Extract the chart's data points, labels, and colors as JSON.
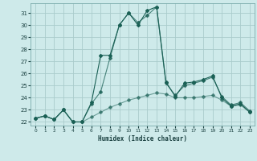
{
  "xlabel": "Humidex (Indice chaleur)",
  "background_color": "#ceeaea",
  "grid_color": "#aacccc",
  "line_color": "#1a6055",
  "xlim": [
    -0.5,
    23.5
  ],
  "ylim": [
    21.7,
    31.8
  ],
  "yticks": [
    22,
    23,
    24,
    25,
    26,
    27,
    28,
    29,
    30,
    31
  ],
  "xticks": [
    0,
    1,
    2,
    3,
    4,
    5,
    6,
    7,
    8,
    9,
    10,
    11,
    12,
    13,
    14,
    15,
    16,
    17,
    18,
    19,
    20,
    21,
    22,
    23
  ],
  "line1_x": [
    0,
    1,
    2,
    3,
    4,
    5,
    6,
    7,
    8,
    9,
    10,
    11,
    12,
    13,
    14,
    15,
    16,
    17,
    18,
    19,
    20,
    21,
    22,
    23
  ],
  "line1_y": [
    22.3,
    22.5,
    22.2,
    23.0,
    22.0,
    22.0,
    23.6,
    27.5,
    27.5,
    30.0,
    31.0,
    30.0,
    31.2,
    31.5,
    25.3,
    24.1,
    25.2,
    25.3,
    25.5,
    25.8,
    24.0,
    23.3,
    23.5,
    22.8
  ],
  "line2_x": [
    0,
    1,
    2,
    3,
    4,
    5,
    6,
    7,
    8,
    9,
    10,
    11,
    12,
    13,
    14,
    15,
    16,
    17,
    18,
    19,
    20,
    21,
    22,
    23
  ],
  "line2_y": [
    22.3,
    22.5,
    22.2,
    23.0,
    22.0,
    22.0,
    23.5,
    24.5,
    27.3,
    30.0,
    31.0,
    30.2,
    30.8,
    31.5,
    25.2,
    24.2,
    25.0,
    25.2,
    25.4,
    25.7,
    24.1,
    23.4,
    23.6,
    22.9
  ],
  "line3_x": [
    0,
    1,
    2,
    3,
    4,
    5,
    6,
    7,
    8,
    9,
    10,
    11,
    12,
    13,
    14,
    15,
    16,
    17,
    18,
    19,
    20,
    21,
    22,
    23
  ],
  "line3_y": [
    22.3,
    22.5,
    22.2,
    23.0,
    22.0,
    22.0,
    22.4,
    22.8,
    23.2,
    23.5,
    23.8,
    24.0,
    24.2,
    24.4,
    24.3,
    24.0,
    24.0,
    24.0,
    24.1,
    24.2,
    23.8,
    23.3,
    23.4,
    22.8
  ]
}
